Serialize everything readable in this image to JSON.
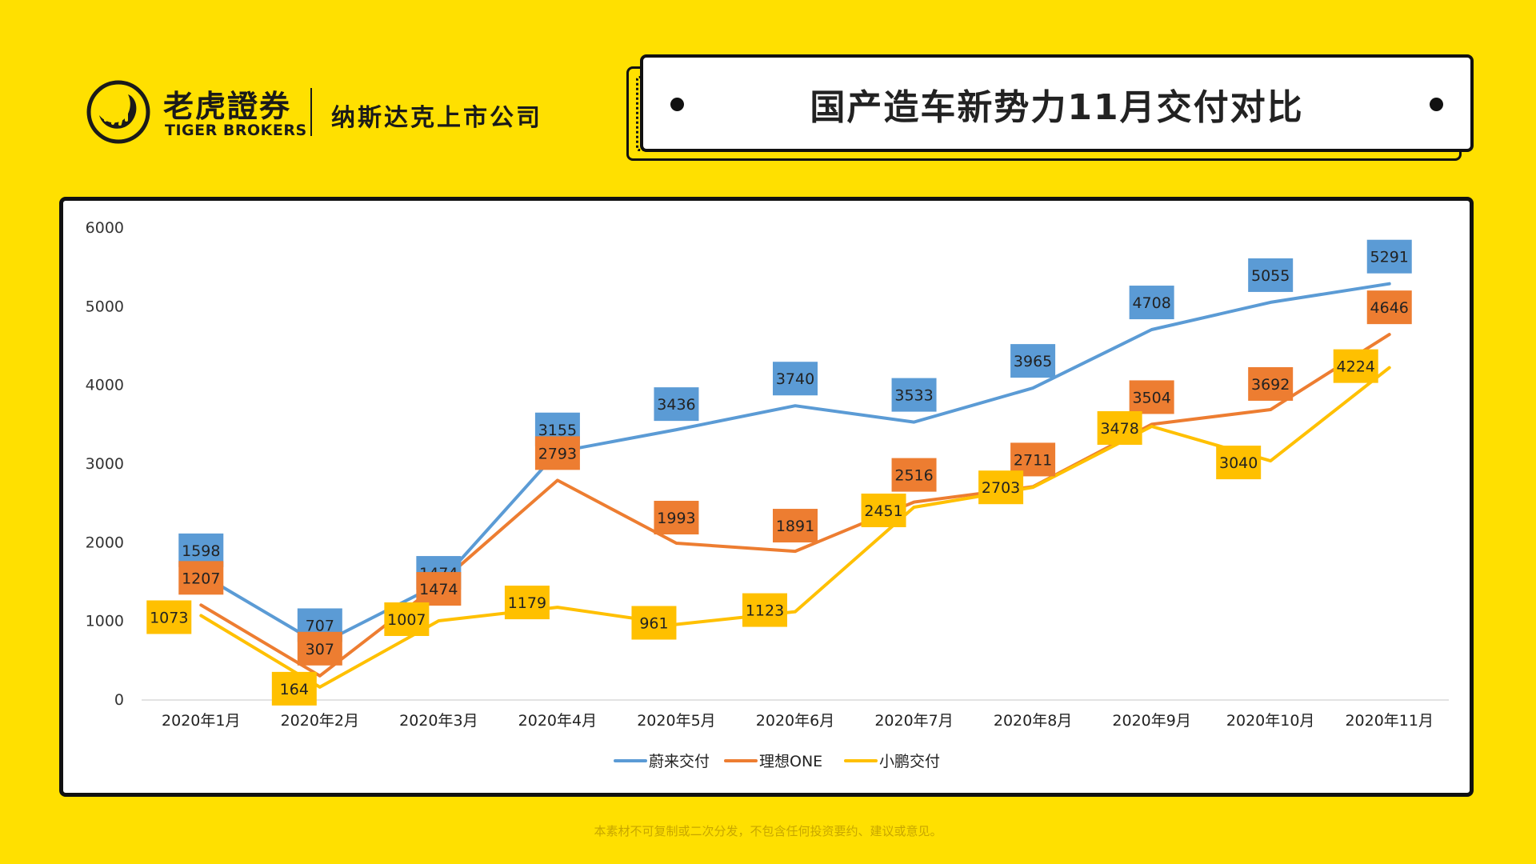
{
  "brand": {
    "name_cn": "老虎證券",
    "name_en": "TIGER BROKERS",
    "subtitle": "纳斯达克上市公司"
  },
  "header": {
    "title": "国产造车新势力11月交付对比"
  },
  "footer": {
    "disclaimer": "本素材不可复制或二次分发，不包含任何投资要约、建议或意见。"
  },
  "colors": {
    "background": "#FFE000",
    "nio": "#5B9BD5",
    "li": "#ED7D31",
    "xpeng": "#FFC000"
  },
  "chart_data": {
    "type": "line",
    "title": "",
    "xlabel": "",
    "ylabel": "",
    "ylim": [
      0,
      6000
    ],
    "yticks": [
      0,
      1000,
      2000,
      3000,
      4000,
      5000,
      6000
    ],
    "grid": false,
    "legend_position": "bottom",
    "categories": [
      "2020年1月",
      "2020年2月",
      "2020年3月",
      "2020年4月",
      "2020年5月",
      "2020年6月",
      "2020年7月",
      "2020年8月",
      "2020年9月",
      "2020年10月",
      "2020年11月"
    ],
    "series": [
      {
        "name": "蔚来交付",
        "color": "#5B9BD5",
        "values": [
          1598,
          707,
          1474,
          3155,
          3436,
          3740,
          3533,
          3965,
          4708,
          5055,
          5291
        ]
      },
      {
        "name": "理想ONE",
        "color": "#ED7D31",
        "values": [
          1207,
          307,
          1474,
          2793,
          1993,
          1891,
          2516,
          2711,
          3504,
          3692,
          4646
        ]
      },
      {
        "name": "小鹏交付",
        "color": "#FFC000",
        "values": [
          1073,
          164,
          1007,
          1179,
          961,
          1123,
          2451,
          2703,
          3478,
          3040,
          4224
        ]
      }
    ]
  }
}
